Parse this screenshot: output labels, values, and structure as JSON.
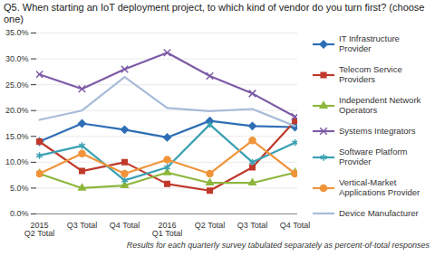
{
  "chart_data": {
    "type": "line",
    "title": "Q5. When starting an IoT deployment project, to which kind of vendor do you turn first? (choose one)",
    "caption": "Results for each quarterly survey tabulated separately as percent-of-total responses",
    "categories": [
      "2015\nQ2 Total",
      "Q3 Total",
      "Q4 Total",
      "2016\nQ1 Total",
      "Q2 Total",
      "Q3 Total",
      "Q4 Total"
    ],
    "ylim": [
      0,
      35
    ],
    "yticks": [
      {
        "value": 0,
        "label": "0.0%"
      },
      {
        "value": 5,
        "label": "5.0%"
      },
      {
        "value": 10,
        "label": "10.0%"
      },
      {
        "value": 15,
        "label": "15.0%"
      },
      {
        "value": 20,
        "label": "20.0%"
      },
      {
        "value": 25,
        "label": "25.0%"
      },
      {
        "value": 30,
        "label": "30.0%"
      },
      {
        "value": 35,
        "label": "35.0%"
      }
    ],
    "grid": true,
    "legend": "right",
    "series": [
      {
        "name": "IT Infrastructure Provider",
        "color": "#2e6eb5",
        "marker": "diamond",
        "values": [
          14.0,
          17.5,
          16.3,
          14.8,
          18.0,
          17.0,
          16.8
        ]
      },
      {
        "name": "Telecom Service Providers",
        "color": "#c0392b",
        "marker": "square",
        "values": [
          14.0,
          8.3,
          10.0,
          5.8,
          4.5,
          9.0,
          18.0
        ]
      },
      {
        "name": "Independent Network Operators",
        "color": "#8db63c",
        "marker": "triangle",
        "values": [
          7.8,
          5.0,
          5.5,
          8.0,
          6.0,
          6.0,
          8.0
        ]
      },
      {
        "name": "Systems Integrators",
        "color": "#7d5ba6",
        "marker": "x",
        "values": [
          27.0,
          24.2,
          28.0,
          31.2,
          26.7,
          23.3,
          18.8
        ]
      },
      {
        "name": "Software Platform Provider",
        "color": "#3aa0b3",
        "marker": "asterisk",
        "values": [
          11.3,
          13.2,
          6.5,
          9.0,
          17.3,
          10.0,
          13.8
        ]
      },
      {
        "name": "Vertical-Market Applications Provider",
        "color": "#f0943a",
        "marker": "circle",
        "values": [
          7.8,
          11.7,
          7.8,
          10.5,
          7.8,
          14.2,
          7.8
        ]
      },
      {
        "name": "Device Manufacturer",
        "color": "#a7bbd9",
        "marker": "none",
        "values": [
          18.2,
          20.0,
          26.5,
          20.5,
          19.9,
          20.3,
          17.0
        ]
      }
    ]
  }
}
